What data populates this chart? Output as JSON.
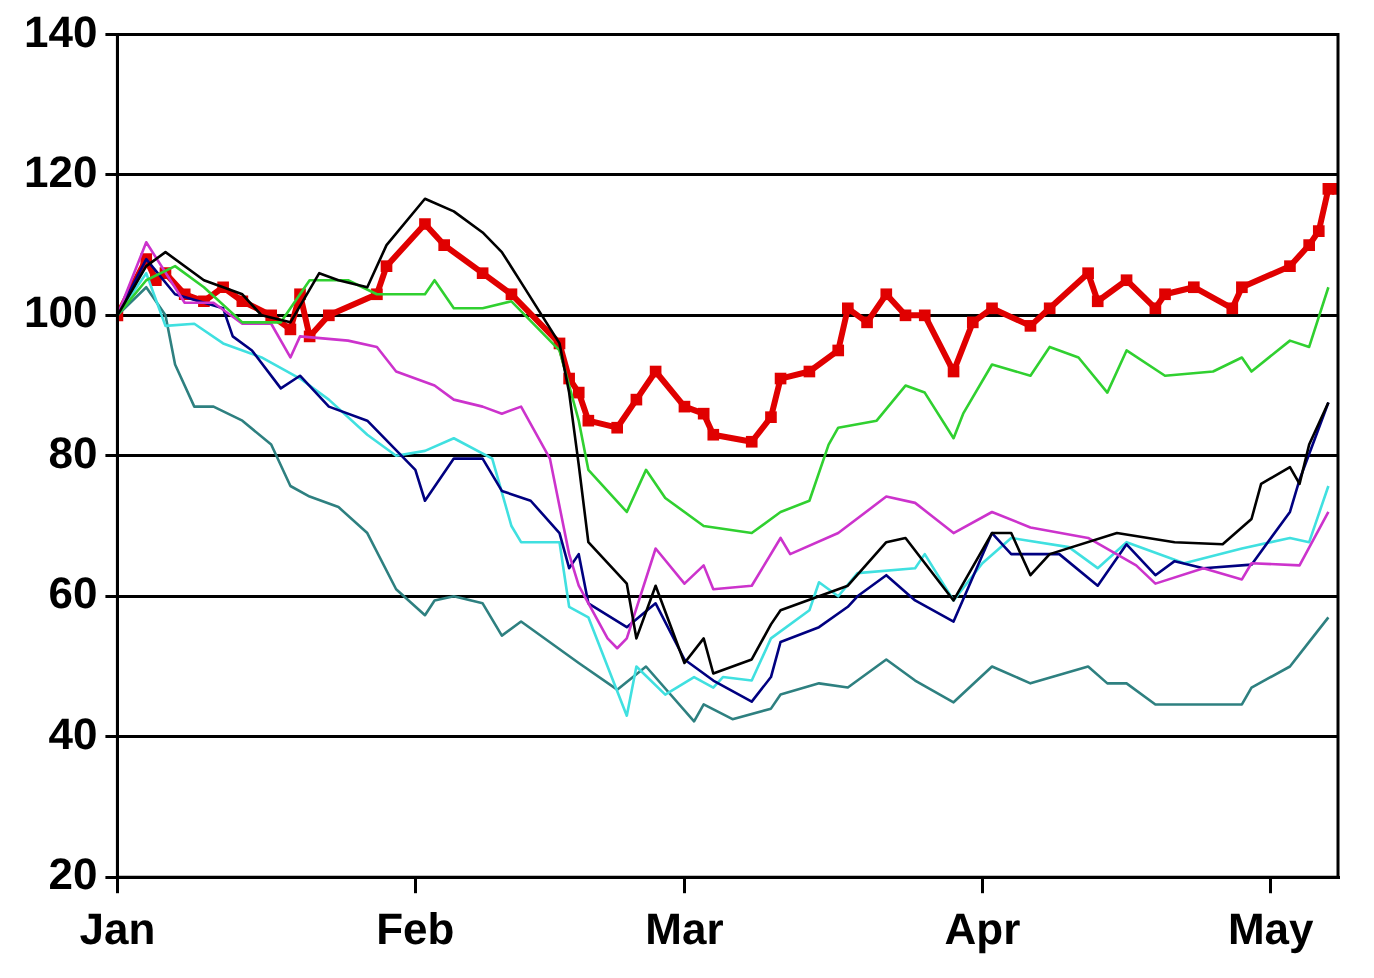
{
  "chart_data": {
    "type": "line",
    "xlim": [
      "--01-01",
      "--05-08"
    ],
    "xticks": [
      {
        "value": "--01-01",
        "label": "Jan"
      },
      {
        "value": "--02-01",
        "label": "Feb"
      },
      {
        "value": "--03-01",
        "label": "Mar"
      },
      {
        "value": "--04-01",
        "label": "Apr"
      },
      {
        "value": "--05-01",
        "label": "May"
      }
    ],
    "ylim": [
      20,
      140
    ],
    "yticks": [
      20,
      40,
      60,
      80,
      100,
      120,
      140
    ],
    "grid": "y",
    "legend": false,
    "marker": "none",
    "line_style": "solid",
    "series": [
      {
        "color": "#000000",
        "x": [
          "--01-01",
          "--01-04",
          "--01-06",
          "--01-10",
          "--01-14",
          "--01-16",
          "--01-19",
          "--01-22",
          "--01-24",
          "--01-27",
          "--01-29",
          "--02-02",
          "--02-05",
          "--02-08",
          "--02-10",
          "--02-12",
          "--02-16",
          "--02-17",
          "--02-18",
          "--02-19",
          "--02-23",
          "--02-24",
          "--02-26",
          "--03-01",
          "--03-03",
          "--03-04",
          "--03-08",
          "--03-10",
          "--03-11",
          "--03-15",
          "--03-18",
          "--03-22",
          "--03-24",
          "--03-29",
          "--04-02",
          "--04-04",
          "--04-06",
          "--04-08",
          "--04-15",
          "--04-21",
          "--04-26",
          "--04-29",
          "--04-30",
          "--05-03",
          "--05-04",
          "--05-05",
          "--05-07"
        ],
        "values": [
          100,
          107,
          109,
          105,
          103,
          100,
          99,
          106,
          105,
          104,
          110,
          116.6,
          114.8,
          111.8,
          109,
          104.7,
          96,
          89,
          78.7,
          67.7,
          61.8,
          54,
          61.5,
          50.5,
          54,
          49,
          51,
          56,
          58,
          60,
          61.5,
          67.7,
          68.3,
          59.4,
          69,
          69,
          63,
          66,
          69,
          67.7,
          67.4,
          71,
          76,
          78.4,
          76,
          81.6,
          87.6
        ]
      },
      {
        "color": "#30d030",
        "x": [
          "--01-01",
          "--01-04",
          "--01-07",
          "--01-10",
          "--01-14",
          "--01-18",
          "--01-21",
          "--01-25",
          "--01-28",
          "--02-02",
          "--02-03",
          "--02-05",
          "--02-08",
          "--02-11",
          "--02-16",
          "--02-18",
          "--02-19",
          "--02-23",
          "--02-25",
          "--02-27",
          "--03-03",
          "--03-08",
          "--03-11",
          "--03-14",
          "--03-16",
          "--03-17",
          "--03-21",
          "--03-24",
          "--03-26",
          "--03-29",
          "--03-30",
          "--04-02",
          "--04-06",
          "--04-08",
          "--04-11",
          "--04-14",
          "--04-16",
          "--04-20",
          "--04-25",
          "--04-28",
          "--04-29",
          "--05-03",
          "--05-05",
          "--05-07"
        ],
        "values": [
          100,
          105,
          107,
          104,
          99,
          99,
          105,
          105,
          103,
          103,
          105,
          101,
          101,
          102,
          95,
          85,
          78,
          72,
          78,
          74,
          70,
          69,
          72,
          73.6,
          81.6,
          84,
          85,
          90,
          89,
          82.5,
          86,
          93,
          91.4,
          95.5,
          94,
          89,
          95,
          91.4,
          92,
          94,
          92,
          96.4,
          95.5,
          104
        ]
      },
      {
        "color": "#cc33cc",
        "x": [
          "--01-01",
          "--01-04",
          "--01-08",
          "--01-11",
          "--01-14",
          "--01-17",
          "--01-19",
          "--01-20",
          "--01-25",
          "--01-28",
          "--01-30",
          "--02-03",
          "--02-05",
          "--02-08",
          "--02-10",
          "--02-12",
          "--02-15",
          "--02-17",
          "--02-18",
          "--02-21",
          "--02-22",
          "--02-23",
          "--02-26",
          "--03-01",
          "--03-03",
          "--03-04",
          "--03-08",
          "--03-11",
          "--03-12",
          "--03-17",
          "--03-22",
          "--03-25",
          "--03-29",
          "--04-02",
          "--04-06",
          "--04-12",
          "--04-17",
          "--04-19",
          "--04-24",
          "--04-28",
          "--04-29",
          "--05-04",
          "--05-07"
        ],
        "values": [
          100,
          110.4,
          101.8,
          101.8,
          98.8,
          98.8,
          94,
          97,
          96.4,
          95.5,
          92,
          90,
          88,
          87,
          86,
          87,
          79.6,
          66,
          61.5,
          54,
          52.6,
          54,
          66.8,
          61.8,
          64.4,
          61,
          61.5,
          68.3,
          66,
          69,
          74.2,
          73.3,
          69,
          72,
          69.8,
          68.3,
          64.4,
          61.8,
          64,
          62.4,
          64.7,
          64.4,
          72
        ]
      },
      {
        "color": "#000080",
        "x": [
          "--01-01",
          "--01-04",
          "--01-07",
          "--01-12",
          "--01-13",
          "--01-15",
          "--01-18",
          "--01-20",
          "--01-23",
          "--01-27",
          "--02-01",
          "--02-02",
          "--02-05",
          "--02-08",
          "--02-10",
          "--02-13",
          "--02-16",
          "--02-17",
          "--02-18",
          "--02-19",
          "--02-23",
          "--02-26",
          "--03-01",
          "--03-04",
          "--03-08",
          "--03-10",
          "--03-11",
          "--03-15",
          "--03-18",
          "--03-19",
          "--03-22",
          "--03-25",
          "--03-29",
          "--04-02",
          "--04-04",
          "--04-09",
          "--04-13",
          "--04-16",
          "--04-19",
          "--04-21",
          "--04-24",
          "--04-29",
          "--05-03",
          "--05-04",
          "--05-07"
        ],
        "values": [
          100,
          108,
          103,
          101,
          97,
          95,
          89.6,
          91.4,
          87,
          85,
          78,
          73.6,
          79.6,
          79.6,
          75,
          73.6,
          69,
          64,
          66,
          59,
          55.6,
          59,
          51,
          48,
          45,
          48.5,
          53.5,
          55.6,
          58.5,
          60,
          63,
          59.4,
          56.4,
          69,
          66,
          66,
          61.5,
          67.4,
          63,
          65,
          64,
          64.5,
          72,
          76.6,
          87.6
        ]
      },
      {
        "color": "#40e0e0",
        "x": [
          "--01-01",
          "--01-04",
          "--01-06",
          "--01-09",
          "--01-12",
          "--01-16",
          "--01-20",
          "--01-23",
          "--01-27",
          "--01-30",
          "--02-02",
          "--02-05",
          "--02-09",
          "--02-11",
          "--02-12",
          "--02-16",
          "--02-17",
          "--02-19",
          "--02-23",
          "--02-24",
          "--02-27",
          "--03-02",
          "--03-04",
          "--03-05",
          "--03-08",
          "--03-10",
          "--03-14",
          "--03-15",
          "--03-17",
          "--03-19",
          "--03-25",
          "--03-26",
          "--03-29",
          "--04-01",
          "--04-04",
          "--04-10",
          "--04-13",
          "--04-16",
          "--04-22",
          "--04-28",
          "--05-03",
          "--05-05",
          "--05-07"
        ],
        "values": [
          100,
          106,
          98.5,
          98.8,
          96,
          94,
          91,
          88,
          83,
          80,
          80.7,
          82.5,
          79.6,
          70,
          67.7,
          67.7,
          58.5,
          57,
          43,
          50,
          46,
          48.5,
          47,
          48.5,
          48,
          54,
          58,
          62,
          60,
          63.3,
          64,
          66,
          59.4,
          64.7,
          68.3,
          67,
          64,
          67.7,
          64.7,
          66.8,
          68.3,
          67.7,
          75.7
        ]
      },
      {
        "color": "#2e8080",
        "x": [
          "--01-01",
          "--01-04",
          "--01-06",
          "--01-07",
          "--01-09",
          "--01-11",
          "--01-14",
          "--01-17",
          "--01-19",
          "--01-21",
          "--01-24",
          "--01-27",
          "--01-30",
          "--02-02",
          "--02-03",
          "--02-05",
          "--02-08",
          "--02-10",
          "--02-12",
          "--02-18",
          "--02-22",
          "--02-25",
          "--03-02",
          "--03-03",
          "--03-06",
          "--03-10",
          "--03-11",
          "--03-15",
          "--03-18",
          "--03-22",
          "--03-25",
          "--03-29",
          "--04-02",
          "--04-06",
          "--04-12",
          "--04-14",
          "--04-16",
          "--04-19",
          "--04-28",
          "--04-29",
          "--05-03",
          "--05-05",
          "--05-07"
        ],
        "values": [
          100,
          104,
          100,
          93,
          87,
          87,
          85,
          81.6,
          75.7,
          74.2,
          72.7,
          69,
          61,
          57.3,
          59.4,
          60,
          59,
          54.4,
          56.4,
          50.5,
          46.7,
          50,
          42.2,
          44.6,
          42.5,
          44,
          46,
          47.6,
          47,
          51,
          48,
          44.9,
          50,
          47.6,
          50,
          47.6,
          47.6,
          44.6,
          44.6,
          47,
          50,
          53.5,
          57
        ]
      },
      {
        "color": "#e00000",
        "marker": "square",
        "x": [
          "--01-01",
          "--01-04",
          "--01-05",
          "--01-06",
          "--01-08",
          "--01-10",
          "--01-12",
          "--01-14",
          "--01-17",
          "--01-19",
          "--01-20",
          "--01-21",
          "--01-23",
          "--01-28",
          "--01-29",
          "--02-02",
          "--02-04",
          "--02-08",
          "--02-11",
          "--02-16",
          "--02-17",
          "--02-18",
          "--02-19",
          "--02-22",
          "--02-24",
          "--02-26",
          "--03-01",
          "--03-03",
          "--03-04",
          "--03-08",
          "--03-10",
          "--03-11",
          "--03-14",
          "--03-17",
          "--03-18",
          "--03-20",
          "--03-22",
          "--03-24",
          "--03-26",
          "--03-29",
          "--03-31",
          "--04-02",
          "--04-06",
          "--04-08",
          "--04-12",
          "--04-13",
          "--04-16",
          "--04-19",
          "--04-20",
          "--04-23",
          "--04-27",
          "--04-28",
          "--05-03",
          "--05-05",
          "--05-06",
          "--05-07",
          "--05-08"
        ],
        "values": [
          100,
          108,
          105,
          106,
          103,
          102,
          104,
          102,
          100,
          98,
          103,
          97,
          100,
          103,
          107,
          113,
          110,
          106,
          103,
          96,
          91,
          89,
          85,
          84,
          88,
          92,
          87,
          86,
          83,
          82,
          85.5,
          91,
          92,
          95,
          101,
          99,
          103,
          100,
          100,
          92,
          99,
          101,
          98.5,
          101,
          106,
          102,
          105,
          101,
          103,
          104,
          101,
          104,
          107,
          110,
          112,
          118,
          118
        ]
      }
    ]
  }
}
